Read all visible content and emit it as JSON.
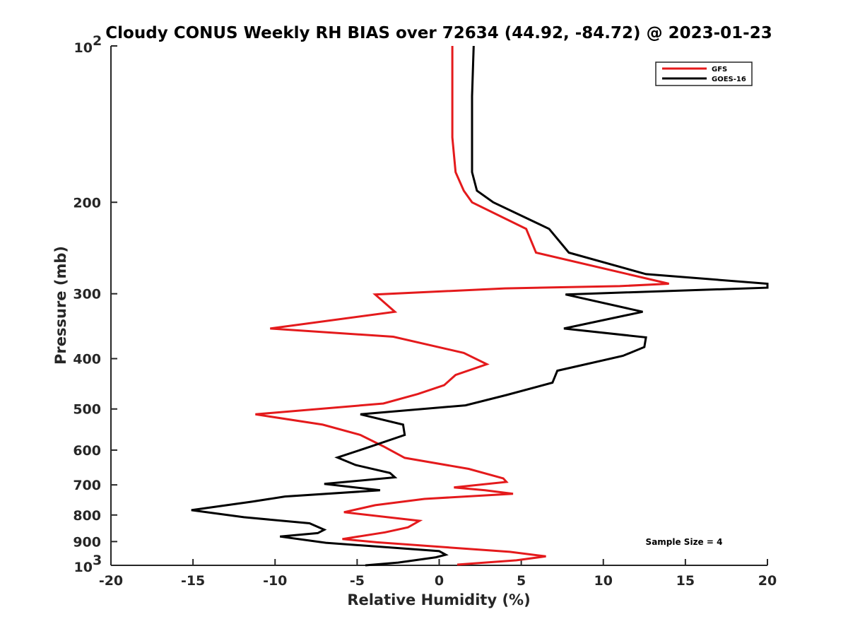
{
  "chart_data": {
    "type": "line",
    "title": "Cloudy CONUS Weekly RH BIAS over 72634 (44.92, -84.72) @ 2023-01-23",
    "xlabel": "Relative Humidity (%)",
    "ylabel": "Pressure (mb)",
    "xlim": [
      -20,
      20
    ],
    "ylim": [
      100,
      1000
    ],
    "y_scale": "log",
    "y_reversed": true,
    "grid": false,
    "legend_position": "top-right",
    "x_ticks": [
      "-20",
      "-15",
      "-10",
      "-5",
      "0",
      "5",
      "10",
      "15",
      "20"
    ],
    "y_ticks": [
      {
        "value": 100,
        "base": "10",
        "exp": "2"
      },
      {
        "value": 200,
        "label": "200"
      },
      {
        "value": 300,
        "label": "300"
      },
      {
        "value": 400,
        "label": "400"
      },
      {
        "value": 500,
        "label": "500"
      },
      {
        "value": 600,
        "label": "600"
      },
      {
        "value": 700,
        "label": "700"
      },
      {
        "value": 800,
        "label": "800"
      },
      {
        "value": 900,
        "label": "900"
      },
      {
        "value": 1000,
        "base": "10",
        "exp": "3"
      }
    ],
    "series": [
      {
        "name": "GFS",
        "color": "#e41a1c",
        "points": [
          [
            0.8,
            100
          ],
          [
            0.8,
            125
          ],
          [
            0.8,
            150
          ],
          [
            1.0,
            175
          ],
          [
            1.5,
            190
          ],
          [
            2.0,
            200
          ],
          [
            5.3,
            225
          ],
          [
            5.9,
            250
          ],
          [
            14.0,
            287
          ],
          [
            11.0,
            290
          ],
          [
            4.0,
            293
          ],
          [
            -3.9,
            301
          ],
          [
            -2.7,
            325
          ],
          [
            -10.3,
            350
          ],
          [
            -2.8,
            363
          ],
          [
            1.5,
            390
          ],
          [
            2.9,
            410
          ],
          [
            1.0,
            430
          ],
          [
            0.3,
            450
          ],
          [
            -1.3,
            468
          ],
          [
            -3.4,
            488
          ],
          [
            -11.2,
            512
          ],
          [
            -7.1,
            536
          ],
          [
            -4.8,
            561
          ],
          [
            -3.4,
            590
          ],
          [
            -2.1,
            621
          ],
          [
            1.8,
            652
          ],
          [
            3.9,
            680
          ],
          [
            4.1,
            691
          ],
          [
            0.9,
            708
          ],
          [
            2.8,
            717
          ],
          [
            4.5,
            728
          ],
          [
            -0.9,
            745
          ],
          [
            -3.9,
            766
          ],
          [
            -5.8,
            790
          ],
          [
            -1.2,
            821
          ],
          [
            -1.9,
            845
          ],
          [
            -3.3,
            864
          ],
          [
            -5.9,
            890
          ],
          [
            -3.8,
            903
          ],
          [
            4.3,
            942
          ],
          [
            6.5,
            961
          ],
          [
            4.7,
            978
          ],
          [
            1.1,
            997
          ]
        ]
      },
      {
        "name": "GOES-16",
        "color": "#000000",
        "points": [
          [
            2.1,
            100
          ],
          [
            2.0,
            125
          ],
          [
            2.0,
            150
          ],
          [
            2.0,
            175
          ],
          [
            2.3,
            190
          ],
          [
            3.3,
            200
          ],
          [
            6.7,
            225
          ],
          [
            7.9,
            250
          ],
          [
            12.6,
            275
          ],
          [
            20.0,
            287
          ],
          [
            20.0,
            292
          ],
          [
            7.7,
            301
          ],
          [
            12.4,
            325
          ],
          [
            7.6,
            350
          ],
          [
            12.6,
            364
          ],
          [
            12.5,
            380
          ],
          [
            11.2,
            395
          ],
          [
            7.2,
            422
          ],
          [
            6.9,
            445
          ],
          [
            4.1,
            470
          ],
          [
            1.6,
            492
          ],
          [
            -4.8,
            512
          ],
          [
            -2.2,
            536
          ],
          [
            -2.1,
            561
          ],
          [
            -4.2,
            591
          ],
          [
            -6.2,
            620
          ],
          [
            -5.1,
            641
          ],
          [
            -3.0,
            664
          ],
          [
            -2.7,
            677
          ],
          [
            -7.0,
            697
          ],
          [
            -3.6,
            717
          ],
          [
            -9.4,
            737
          ],
          [
            -11.4,
            754
          ],
          [
            -15.1,
            783
          ],
          [
            -11.9,
            808
          ],
          [
            -7.9,
            830
          ],
          [
            -7.0,
            854
          ],
          [
            -7.4,
            867
          ],
          [
            -9.7,
            880
          ],
          [
            -6.9,
            905
          ],
          [
            0.0,
            939
          ],
          [
            0.4,
            954
          ],
          [
            -0.2,
            965
          ],
          [
            -2.5,
            988
          ],
          [
            -4.5,
            1000
          ]
        ]
      }
    ],
    "annotation": "Sample Size = 4"
  }
}
